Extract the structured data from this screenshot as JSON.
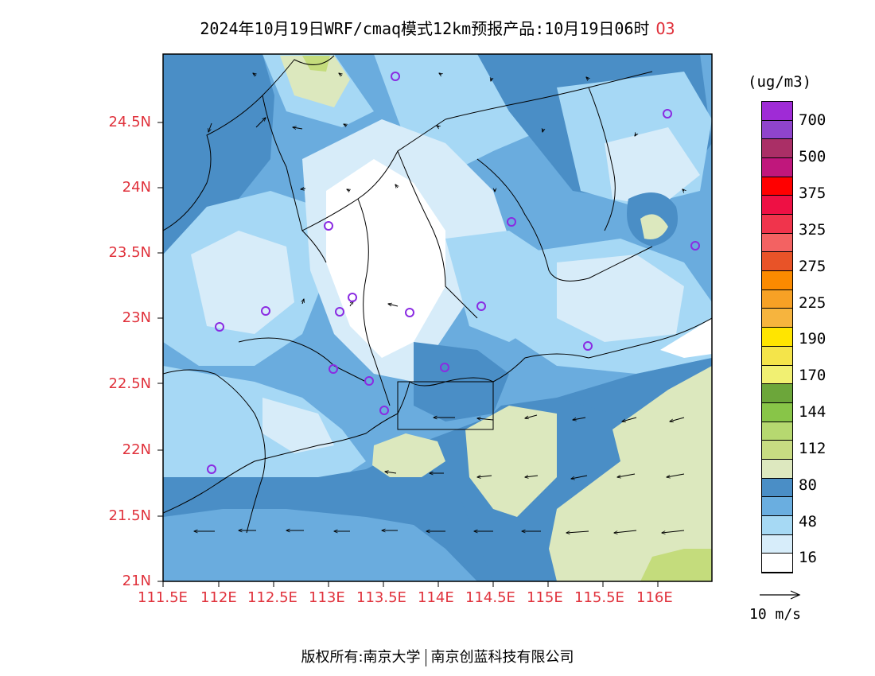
{
  "title": {
    "text": "2024年10月19日WRF/cmaq模式12km预报产品:10月19日06时",
    "species": "O3"
  },
  "map": {
    "lat_labels": [
      "24.5N",
      "24N",
      "23.5N",
      "23N",
      "22.5N",
      "22N",
      "21.5N",
      "21N"
    ],
    "lon_labels": [
      "111.5E",
      "112E",
      "112.5E",
      "113E",
      "113.5E",
      "114E",
      "114.5E",
      "115E",
      "115.5E",
      "116E"
    ],
    "station_marker_color": "#8a2be2",
    "colors": {
      "white": "#ffffff",
      "pale": "#d7ecf9",
      "light": "#a6d8f5",
      "mid": "#6aacde",
      "dark": "#4a8ec6",
      "green": "#dce8be",
      "yellowgreen": "#c4dc7c"
    }
  },
  "legend": {
    "units": "(ug/m3)",
    "labels": [
      "700",
      "500",
      "375",
      "325",
      "275",
      "225",
      "190",
      "170",
      "144",
      "112",
      "80",
      "48",
      "16"
    ],
    "colors": [
      "#9f2bd6",
      "#8f44cc",
      "#aa2f66",
      "#c0177c",
      "#ff0000",
      "#ee1044",
      "#f0344c",
      "#f36262",
      "#e85328",
      "#fb8a00",
      "#f7a125",
      "#f6b43e",
      "#ffe500",
      "#f4e44a",
      "#f1f072",
      "#6ca63a",
      "#88c548",
      "#b6d870",
      "#c8dc82",
      "#dde8bf",
      "#4a8ec6",
      "#6aaee0",
      "#a6d9f4",
      "#d7edfa",
      "#ffffff"
    ]
  },
  "wind_reference": {
    "label": "10 m/s"
  },
  "footer": {
    "copyright": "版权所有:南京大学",
    "company": "南京创蓝科技有限公司"
  }
}
